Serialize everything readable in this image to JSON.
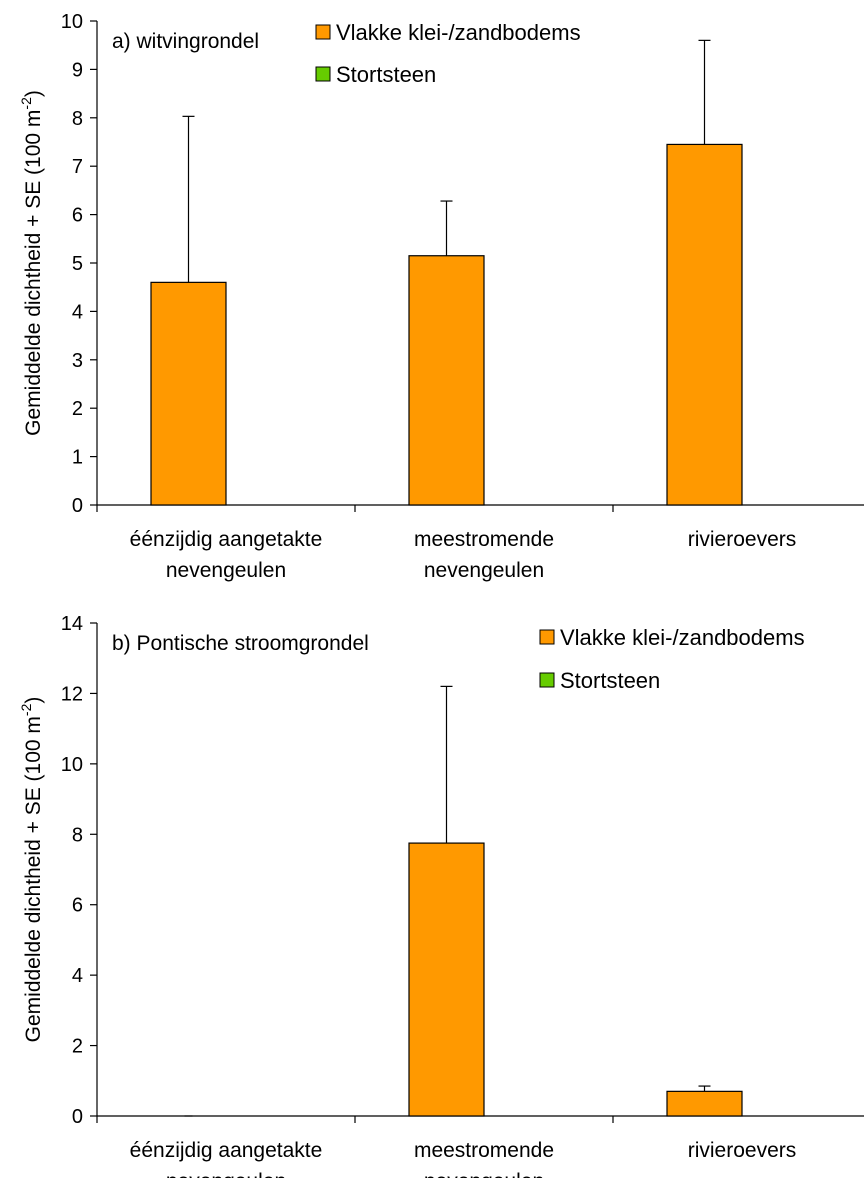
{
  "chart_data": [
    {
      "type": "bar",
      "panel_label": "a) witvingrondel",
      "ylabel": "Gemiddelde dichtheid + SE (100 m",
      "ylabel_sup": "-2",
      "ylabel_close": ")",
      "ylim": [
        0,
        10
      ],
      "yticks": [
        0,
        1,
        2,
        3,
        4,
        5,
        6,
        7,
        8,
        9,
        10
      ],
      "categories": [
        [
          "ééNzijdig aangetakte",
          "nevengeulen"
        ],
        [
          "meestromende",
          "nevengeulen"
        ],
        [
          "rivieroevers"
        ]
      ],
      "series": [
        {
          "name": "Vlakke klei-/zandbodems",
          "color": "#ff9900",
          "values": [
            4.6,
            5.15,
            7.45
          ],
          "se": [
            3.43,
            1.13,
            2.15
          ]
        },
        {
          "name": "Stortsteen",
          "color": "#66cc00",
          "values": [
            null,
            null,
            null
          ],
          "se": [
            null,
            null,
            null
          ]
        }
      ],
      "legend_position": "top-right",
      "grid": false
    },
    {
      "type": "bar",
      "panel_label": "b) Pontische stroomgrondel",
      "ylabel": "Gemiddelde dichtheid + SE (100 m",
      "ylabel_sup": "-2",
      "ylabel_close": ")",
      "ylim": [
        0,
        14
      ],
      "yticks": [
        0,
        2,
        4,
        6,
        8,
        10,
        12,
        14
      ],
      "categories": [
        [
          "ééNzijdig aangetakte",
          "nevengeulen"
        ],
        [
          "meestromende",
          "nevengeulen"
        ],
        [
          "rivieroevers"
        ]
      ],
      "series": [
        {
          "name": "Vlakke klei-/zandbodems",
          "color": "#ff9900",
          "values": [
            0,
            7.75,
            0.7
          ],
          "se": [
            0,
            4.45,
            0.15
          ]
        },
        {
          "name": "Stortsteen",
          "color": "#66cc00",
          "values": [
            null,
            null,
            null
          ],
          "se": [
            null,
            null,
            null
          ]
        }
      ],
      "legend_position": "top-right",
      "grid": false
    }
  ]
}
